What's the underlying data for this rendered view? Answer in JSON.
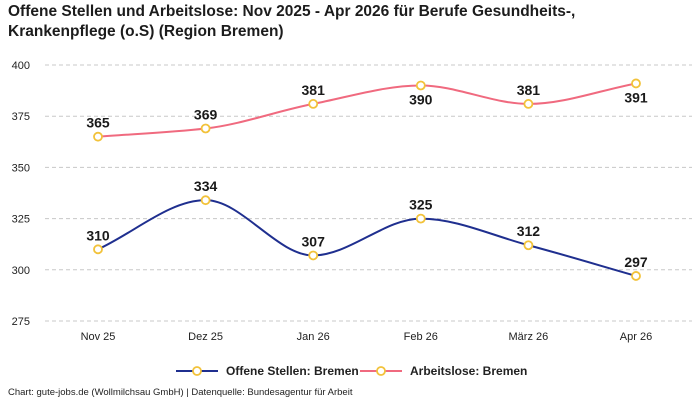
{
  "title_lines": [
    "Offene Stellen und Arbeitslose: Nov 2025 - Apr 2026 für Berufe Gesundheits-,",
    "Krankenpflege (o.S) (Region Bremen)"
  ],
  "footer": "Chart: gute-jobs.de (Wollmilchsau GmbH) | Datenquelle: Bundesagentur für Arbeit",
  "colors": {
    "offene_stellen": "#1f2f8f",
    "arbeitslose": "#f06a7f",
    "marker_stroke": "#f2c23a",
    "grid": "#c8c8c8"
  },
  "chart_data": {
    "type": "line",
    "categories": [
      "Nov 25",
      "Dez 25",
      "Jan 26",
      "Feb 26",
      "März 26",
      "Apr 26"
    ],
    "series": [
      {
        "name": "Offene Stellen: Bremen",
        "values": [
          310,
          334,
          307,
          325,
          312,
          297
        ]
      },
      {
        "name": "Arbeitslose: Bremen",
        "values": [
          365,
          369,
          381,
          390,
          381,
          391
        ]
      }
    ],
    "ylim": [
      275,
      400
    ],
    "yticks": [
      275,
      300,
      325,
      350,
      375,
      400
    ],
    "grid": true,
    "legend_position": "bottom",
    "smooth": true,
    "data_labels": true
  }
}
